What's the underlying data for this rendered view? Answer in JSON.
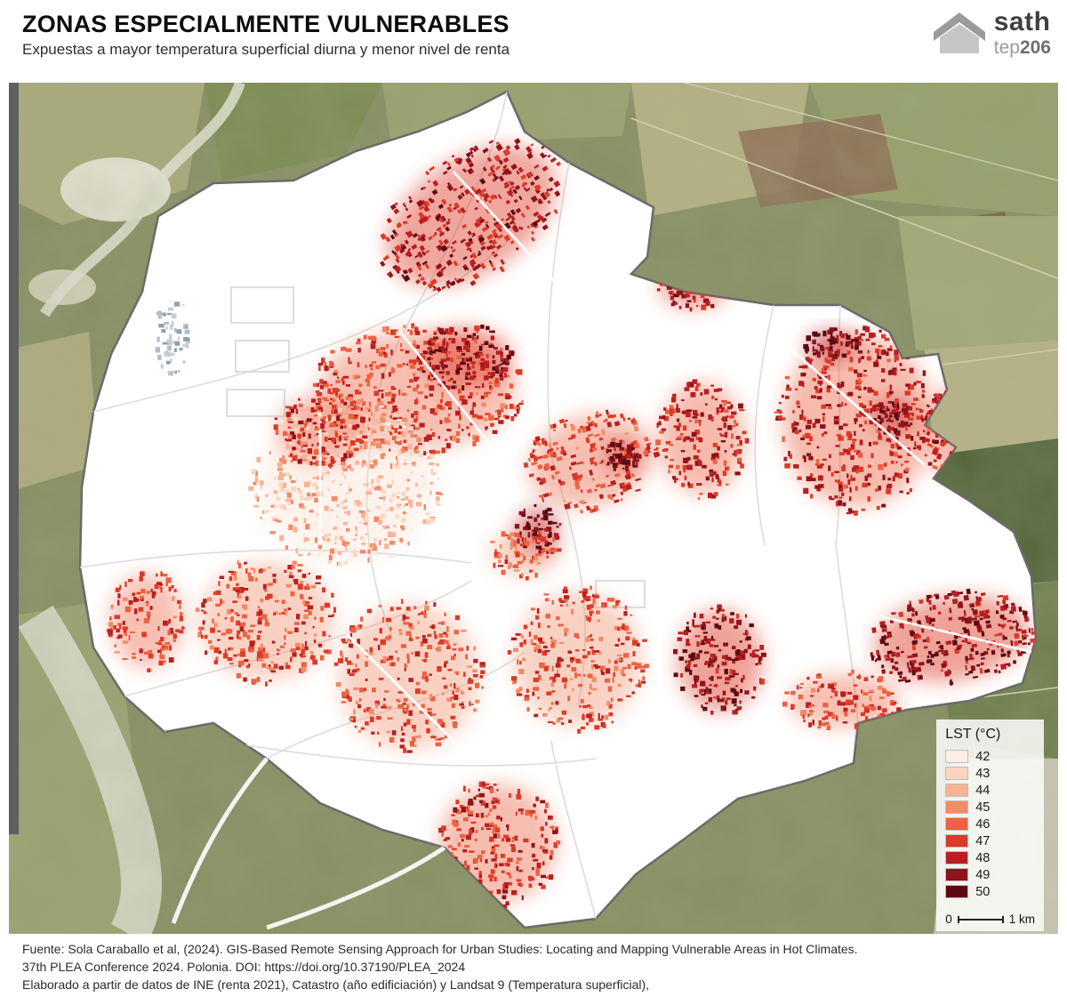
{
  "header": {
    "title": "ZONAS ESPECIALMENTE VULNERABLES",
    "subtitle": "Expuestas a mayor temperatura superficial diurna y menor nivel de renta",
    "logo": {
      "name": "sath",
      "sub": "tep",
      "num": "206"
    }
  },
  "legend": {
    "title": "LST (°C)",
    "items": [
      {
        "label": "42",
        "color": "#fdeee7"
      },
      {
        "label": "43",
        "color": "#fbd5c0"
      },
      {
        "label": "44",
        "color": "#f8b295"
      },
      {
        "label": "45",
        "color": "#f28b66"
      },
      {
        "label": "46",
        "color": "#ec6242"
      },
      {
        "label": "47",
        "color": "#dd3a27"
      },
      {
        "label": "48",
        "color": "#b81f22"
      },
      {
        "label": "49",
        "color": "#8e131b"
      },
      {
        "label": "50",
        "color": "#5c0a12"
      }
    ],
    "scale": {
      "start": "0",
      "end": "1 km"
    }
  },
  "footer": {
    "lines": [
      "Fuente: Sola Caraballo et al,  (2024). GIS-Based Remote Sensing Approach for Urban Studies: Locating and Mapping Vulnerable Areas in Hot Climates.",
      "37th PLEA Conference 2024. Polonia. DOI: https://doi.org/10.37190/PLEA_2024",
      "Elaborado a partir de datos de INE (renta 2021), Catastro (año edificiación) y Landsat 9 (Temperatura superficial),"
    ]
  }
}
